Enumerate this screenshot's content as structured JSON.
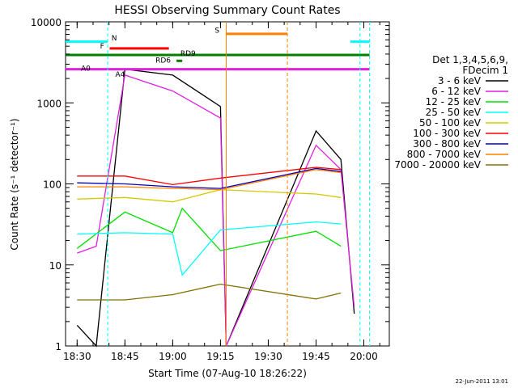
{
  "chart_data": {
    "type": "line",
    "title": "HESSI Observing Summary Count Rates",
    "xlabel": "Start Time (07-Aug-10 18:26:22)",
    "ylabel": "Count Rate (s⁻¹ detector⁻¹)",
    "yscale": "log",
    "ylim": [
      1,
      10000
    ],
    "xlim": [
      "18:26:22",
      "20:08"
    ],
    "x_ticks": [
      "18:30",
      "18:45",
      "19:00",
      "19:15",
      "19:30",
      "19:45",
      "20:00"
    ],
    "y_ticks": [
      "1",
      "10",
      "100",
      "1000",
      "10000"
    ],
    "grid": false,
    "legend_position": "right",
    "legend_header": [
      "Det 1,3,4,5,6,9,",
      "FDecim 1"
    ],
    "timestamp": "22-Jun-2011 13:01",
    "flag_labels": {
      "N": "N",
      "F": "F",
      "RD9": "RD9",
      "RD6": "RD6",
      "A0": "A0",
      "A4": "A4",
      "S": "S"
    },
    "series": [
      {
        "name": "3 - 6 keV",
        "color": "#000000",
        "x": [
          18.5,
          18.6,
          18.75,
          19.0,
          19.25,
          19.28,
          19.75,
          19.88,
          19.95
        ],
        "y": [
          1.8,
          1.0,
          2600,
          2200,
          900,
          1.0,
          450,
          200,
          2.5
        ]
      },
      {
        "name": "6 - 12 keV",
        "color": "#e020e0",
        "x": [
          18.5,
          18.6,
          18.75,
          19.0,
          19.25,
          19.28,
          19.75,
          19.88,
          19.95
        ],
        "y": [
          14,
          17,
          2200,
          1400,
          650,
          1.0,
          300,
          150,
          3.0
        ]
      },
      {
        "name": "12 - 25 keV",
        "color": "#00e000",
        "x": [
          18.5,
          18.75,
          19.0,
          19.05,
          19.25,
          19.75,
          19.88
        ],
        "y": [
          16,
          45,
          25,
          50,
          15,
          26,
          17
        ]
      },
      {
        "name": "25 - 50 keV",
        "color": "#00ffff",
        "x": [
          18.5,
          18.75,
          19.0,
          19.05,
          19.25,
          19.75,
          19.88
        ],
        "y": [
          24,
          25,
          24,
          7.5,
          27,
          34,
          32
        ]
      },
      {
        "name": "50 - 100 keV",
        "color": "#d4c800",
        "x": [
          18.5,
          18.75,
          19.0,
          19.25,
          19.75,
          19.88
        ],
        "y": [
          65,
          68,
          60,
          85,
          75,
          68
        ]
      },
      {
        "name": "100 - 300 keV",
        "color": "#ff0000",
        "x": [
          18.5,
          18.75,
          19.0,
          19.25,
          19.75,
          19.88
        ],
        "y": [
          125,
          125,
          98,
          118,
          160,
          150
        ]
      },
      {
        "name": "300 - 800 keV",
        "color": "#0000c0",
        "x": [
          18.5,
          18.75,
          19.0,
          19.25,
          19.75,
          19.88
        ],
        "y": [
          103,
          100,
          92,
          88,
          155,
          142
        ]
      },
      {
        "name": "800 - 7000 keV",
        "color": "#ff8000",
        "x": [
          18.5,
          18.75,
          19.0,
          19.25,
          19.75,
          19.88
        ],
        "y": [
          92,
          92,
          88,
          85,
          150,
          138
        ]
      },
      {
        "name": "7000 - 20000 keV",
        "color": "#807000",
        "x": [
          18.5,
          18.75,
          19.0,
          19.25,
          19.75,
          19.88
        ],
        "y": [
          3.7,
          3.7,
          4.3,
          5.8,
          3.8,
          4.5
        ]
      }
    ]
  }
}
